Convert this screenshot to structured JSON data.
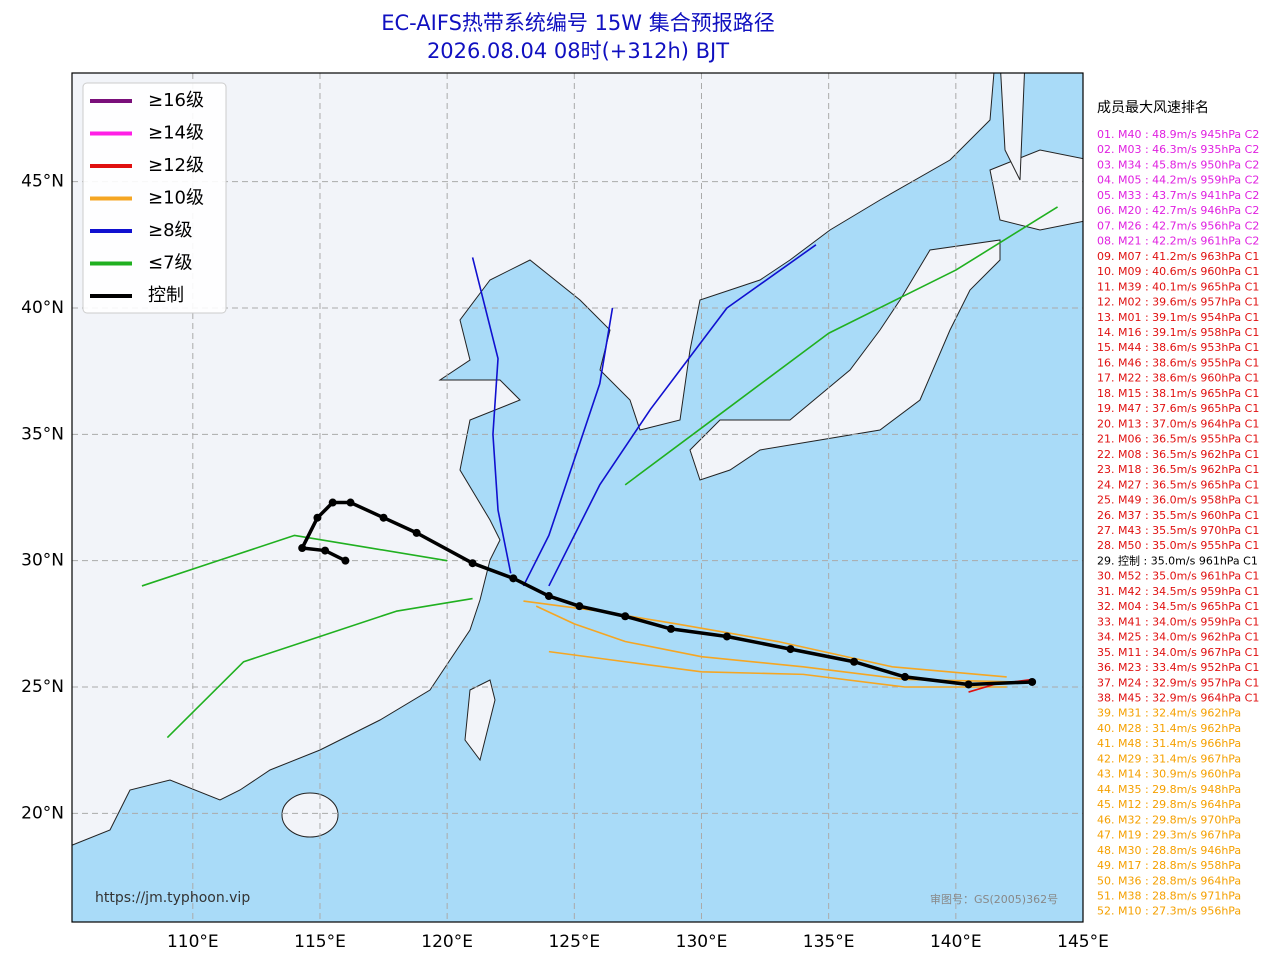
{
  "title": "EC-AIFS热带系统编号 15W 集合预报路径",
  "subtitle": "2026.08.04 08时(+312h) BJT",
  "map": {
    "xlim": [
      105.25,
      145
    ],
    "ylim": [
      15.7,
      49.3
    ],
    "xticks": [
      {
        "value": 110,
        "label": "110°E"
      },
      {
        "value": 115,
        "label": "115°E"
      },
      {
        "value": 120,
        "label": "120°E"
      },
      {
        "value": 125,
        "label": "125°E"
      },
      {
        "value": 130,
        "label": "130°E"
      },
      {
        "value": 135,
        "label": "135°E"
      },
      {
        "value": 140,
        "label": "140°E"
      },
      {
        "value": 145,
        "label": "145°E"
      }
    ],
    "yticks": [
      {
        "value": 20,
        "label": "20°N"
      },
      {
        "value": 25,
        "label": "25°N"
      },
      {
        "value": 30,
        "label": "30°N"
      },
      {
        "value": 35,
        "label": "35°N"
      },
      {
        "value": 40,
        "label": "40°N"
      },
      {
        "value": 45,
        "label": "45°N"
      }
    ],
    "grid": true
  },
  "legend": [
    {
      "label": "≥16级",
      "color": "#7a0f7a"
    },
    {
      "label": "≥14级",
      "color": "#ff1ee6"
    },
    {
      "label": "≥12级",
      "color": "#e01010"
    },
    {
      "label": "≥10级",
      "color": "#f5a623"
    },
    {
      "label": "≥8级",
      "color": "#1010d0"
    },
    {
      "label": "≤7级",
      "color": "#20b020"
    },
    {
      "label": "控制",
      "color": "#000000"
    }
  ],
  "members": [
    {
      "color": "#f5a623",
      "lon": [
        142.5,
        138,
        134,
        130,
        127,
        125,
        123.5
      ],
      "lat": [
        25.2,
        25.3,
        25.8,
        26.2,
        26.8,
        27.5,
        28.2
      ]
    },
    {
      "color": "#f5a623",
      "lon": [
        142,
        138,
        134,
        130,
        127,
        124
      ],
      "lat": [
        25,
        25,
        25.5,
        25.6,
        26,
        26.4
      ]
    },
    {
      "color": "#f5a623",
      "lon": [
        142,
        137.5,
        133,
        129,
        126,
        123
      ],
      "lat": [
        25.4,
        25.8,
        26.8,
        27.5,
        28,
        28.4
      ]
    },
    {
      "color": "#1010d0",
      "lon": [
        122.5,
        122,
        121.8,
        122,
        121
      ],
      "lat": [
        29.5,
        32,
        35,
        38,
        42
      ]
    },
    {
      "color": "#1010d0",
      "lon": [
        123,
        124,
        125,
        126,
        126.5
      ],
      "lat": [
        29,
        31,
        34,
        37,
        40
      ]
    },
    {
      "color": "#1010d0",
      "lon": [
        124,
        126,
        128,
        131,
        134.5
      ],
      "lat": [
        29,
        33,
        36,
        40,
        42.5
      ]
    },
    {
      "color": "#20b020",
      "lon": [
        121,
        118,
        115,
        112,
        109
      ],
      "lat": [
        28.5,
        28,
        27,
        26,
        23
      ]
    },
    {
      "color": "#20b020",
      "lon": [
        120,
        117,
        114,
        111,
        108
      ],
      "lat": [
        30,
        30.5,
        31,
        30,
        29
      ]
    },
    {
      "color": "#20b020",
      "lon": [
        127,
        131,
        135,
        140,
        144
      ],
      "lat": [
        33,
        36,
        39,
        41.5,
        44
      ]
    },
    {
      "color": "#e01010",
      "lon": [
        143,
        141.5,
        140.5
      ],
      "lat": [
        25.3,
        25.1,
        24.8
      ]
    }
  ],
  "control": {
    "color": "#000000",
    "lon": [
      143,
      140.5,
      138,
      136,
      133.5,
      131,
      128.8,
      127,
      125.2,
      124,
      122.6,
      121,
      118.8,
      117.5,
      116.2,
      115.5,
      114.9,
      114.3,
      115.2,
      116
    ],
    "lat": [
      25.2,
      25.1,
      25.4,
      26,
      26.5,
      27,
      27.3,
      27.8,
      28.2,
      28.6,
      29.3,
      29.9,
      31.1,
      31.7,
      32.3,
      32.3,
      31.7,
      30.5,
      30.4,
      30
    ]
  },
  "ranking": {
    "title": "成员最大风速排名",
    "groups": [
      {
        "color": "#e020e0",
        "items": [
          "01. M40 : 48.9m/s 945hPa C2",
          "02. M03 : 46.3m/s 935hPa C2",
          "03. M34 : 45.8m/s 950hPa C2",
          "04. M05 : 44.2m/s 959hPa C2",
          "05. M33 : 43.7m/s 941hPa C2",
          "06. M20 : 42.7m/s 946hPa C2",
          "07. M26 : 42.7m/s 956hPa C2",
          "08. M21 : 42.2m/s 961hPa C2"
        ]
      },
      {
        "color": "#e01010",
        "items": [
          "09. M07 : 41.2m/s 963hPa C1",
          "10. M09 : 40.6m/s 960hPa C1",
          "11. M39 : 40.1m/s 965hPa C1",
          "12. M02 : 39.6m/s 957hPa C1",
          "13. M01 : 39.1m/s 954hPa C1",
          "14. M16 : 39.1m/s 958hPa C1",
          "15. M44 : 38.6m/s 953hPa C1",
          "16. M46 : 38.6m/s 955hPa C1",
          "17. M22 : 38.6m/s 960hPa C1",
          "18. M15 : 38.1m/s 965hPa C1",
          "19. M47 : 37.6m/s 965hPa C1",
          "20. M13 : 37.0m/s 964hPa C1",
          "21. M06 : 36.5m/s 955hPa C1",
          "22. M08 : 36.5m/s 962hPa C1",
          "23. M18 : 36.5m/s 962hPa C1",
          "24. M27 : 36.5m/s 965hPa C1",
          "25. M49 : 36.0m/s 958hPa C1",
          "26. M37 : 35.5m/s 960hPa C1",
          "27. M43 : 35.5m/s 970hPa C1",
          "28. M50 : 35.0m/s 955hPa C1"
        ]
      },
      {
        "color": "#000000",
        "items": [
          "29. 控制 : 35.0m/s 961hPa C1"
        ]
      },
      {
        "color": "#e01010",
        "items": [
          "30. M52 : 35.0m/s 961hPa C1",
          "31. M42 : 34.5m/s 959hPa C1",
          "32. M04 : 34.5m/s 965hPa C1",
          "33. M41 : 34.0m/s 959hPa C1",
          "34. M25 : 34.0m/s 962hPa C1",
          "35. M11 : 34.0m/s 967hPa C1",
          "36. M23 : 33.4m/s 952hPa C1",
          "37. M24 : 32.9m/s 957hPa C1",
          "38. M45 : 32.9m/s 964hPa C1"
        ]
      },
      {
        "color": "#f5a000",
        "items": [
          "39. M31 : 32.4m/s 962hPa",
          "40. M28 : 31.4m/s 962hPa",
          "41. M48 : 31.4m/s 966hPa",
          "42. M29 : 31.4m/s 967hPa",
          "43. M14 : 30.9m/s 960hPa",
          "44. M35 : 29.8m/s 948hPa",
          "45. M12 : 29.8m/s 964hPa",
          "46. M32 : 29.8m/s 970hPa",
          "47. M19 : 29.3m/s 967hPa",
          "48. M30 : 28.8m/s 946hPa",
          "49. M17 : 28.8m/s 958hPa",
          "50. M36 : 28.8m/s 964hPa",
          "51. M38 : 28.8m/s 971hPa",
          "52. M10 : 27.3m/s 956hPa"
        ]
      }
    ]
  },
  "source": "https://jm.typhoon.vip",
  "approval": "审图号：GS(2005)362号"
}
